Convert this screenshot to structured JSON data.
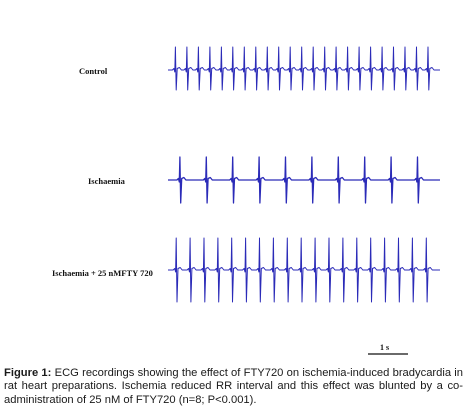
{
  "figure": {
    "traces": [
      {
        "label": "Control",
        "beat_count": 23
      },
      {
        "label": "Ischaemia",
        "beat_count": 10
      },
      {
        "label": "Ischaemia + 25 nMFTY 720",
        "beat_count": 19
      }
    ],
    "trace_color": "#2b2bb8",
    "scale_bar": {
      "label": "1 s"
    },
    "caption": {
      "label": "Figure 1:",
      "text": "ECG recordings showing the effect of FTY720 on ischemia-induced bradycardia in rat heart preparations. Ischemia reduced RR interval and this effect was blunted by a co-administration of 25 nM of FTY720 (n=8; P<0.001)."
    }
  }
}
